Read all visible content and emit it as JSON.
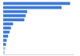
{
  "chart_data": {
    "type": "bar",
    "orientation": "horizontal",
    "categories": [
      null,
      null,
      null,
      null,
      null,
      null,
      null,
      null,
      null,
      null,
      null,
      null,
      null
    ],
    "values": [
      95,
      83,
      34,
      32,
      30,
      14,
      11,
      9,
      7,
      5,
      4,
      3,
      2
    ],
    "colors": [
      "#3d7ad8",
      "#3d7ad8",
      "#3d7ad8",
      "#3d7ad8",
      "#3d7ad8",
      "#3d7ad8",
      "#3d7ad8",
      "#3d7ad8",
      "#3d7ad8",
      "#3d7ad8",
      "#3d7ad8",
      "#a9c3ea",
      "#a9c3ea"
    ],
    "xlim": [
      0,
      100
    ],
    "xticks": [],
    "tick_labels": false,
    "grid": false
  }
}
